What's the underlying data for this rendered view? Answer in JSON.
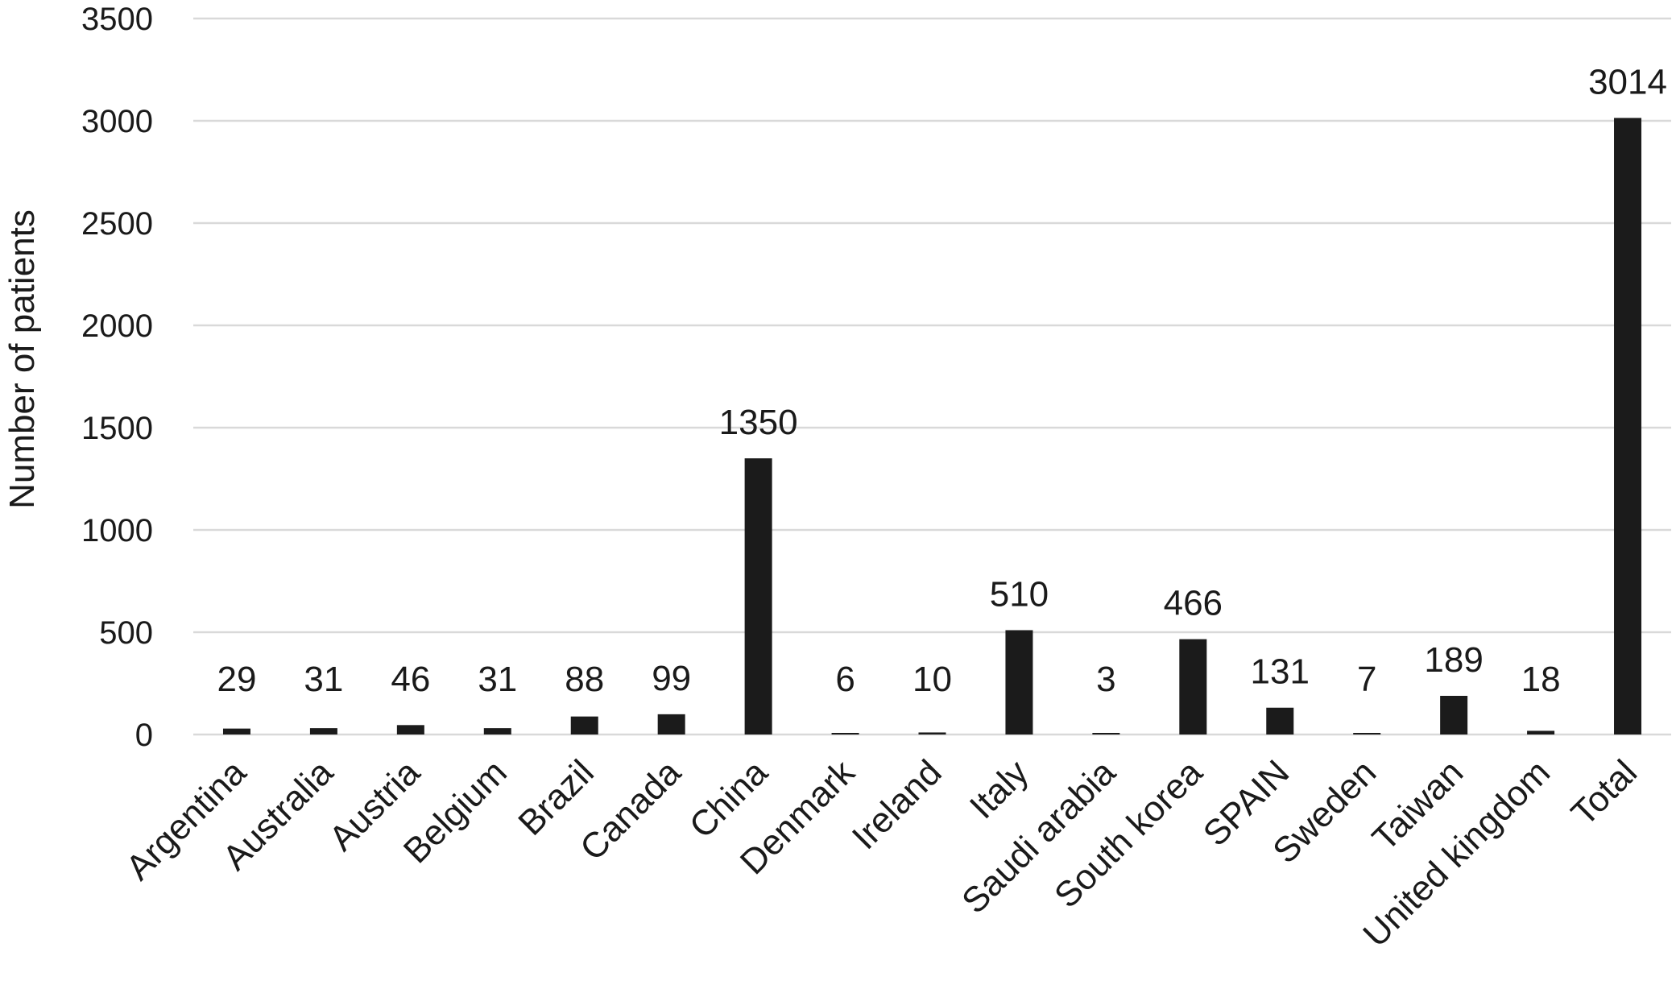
{
  "chart_data": {
    "type": "bar",
    "title": "",
    "xlabel": "",
    "ylabel": "Number of patients",
    "ylim": [
      0,
      3500
    ],
    "yticks": [
      0,
      500,
      1000,
      1500,
      2000,
      2500,
      3000,
      3500
    ],
    "grid": true,
    "legend": "none",
    "bar_color": "#1b1b1b",
    "grid_color": "#d9d9d9",
    "categories": [
      "Argentina",
      "Australia",
      "Austria",
      "Belgium",
      "Brazil",
      "Canada",
      "China",
      "Denmark",
      "Ireland",
      "Italy",
      "Saudi arabia",
      "South korea",
      "SPAIN",
      "Sweden",
      "Taiwan",
      "United kingdom",
      "Total"
    ],
    "values": [
      29,
      31,
      46,
      31,
      88,
      99,
      1350,
      6,
      10,
      510,
      3,
      466,
      131,
      7,
      189,
      18,
      3014
    ]
  }
}
